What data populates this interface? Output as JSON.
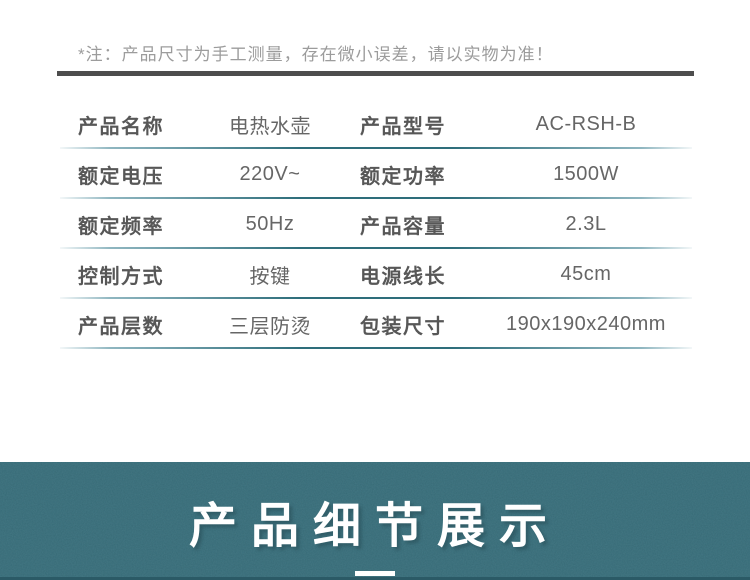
{
  "note": {
    "text": "*注：产品尺寸为手工测量，存在微小误差，请以实物为准！"
  },
  "spec_table": {
    "rows": [
      {
        "label1": "产品名称",
        "value1": "电热水壶",
        "label2": "产品型号",
        "value2": "AC-RSH-B"
      },
      {
        "label1": "额定电压",
        "value1": "220V~",
        "label2": "额定功率",
        "value2": "1500W"
      },
      {
        "label1": "额定频率",
        "value1": "50Hz",
        "label2": "产品容量",
        "value2": "2.3L"
      },
      {
        "label1": "控制方式",
        "value1": "按键",
        "label2": "电源线长",
        "value2": "45cm"
      },
      {
        "label1": "产品层数",
        "value1": "三层防烫",
        "label2": "包装尺寸",
        "value2": "190x190x240mm"
      }
    ]
  },
  "detail_banner": {
    "title": "产品细节展示"
  },
  "colors": {
    "teal_bg": "#3a727f",
    "divider_teal": "#2e6e7b",
    "dark_bar": "#4d4d4d",
    "note_gray": "#9c9c9c",
    "label_gray": "#575757",
    "value_gray": "#666666",
    "banner_bottom": "#2b5a66"
  }
}
